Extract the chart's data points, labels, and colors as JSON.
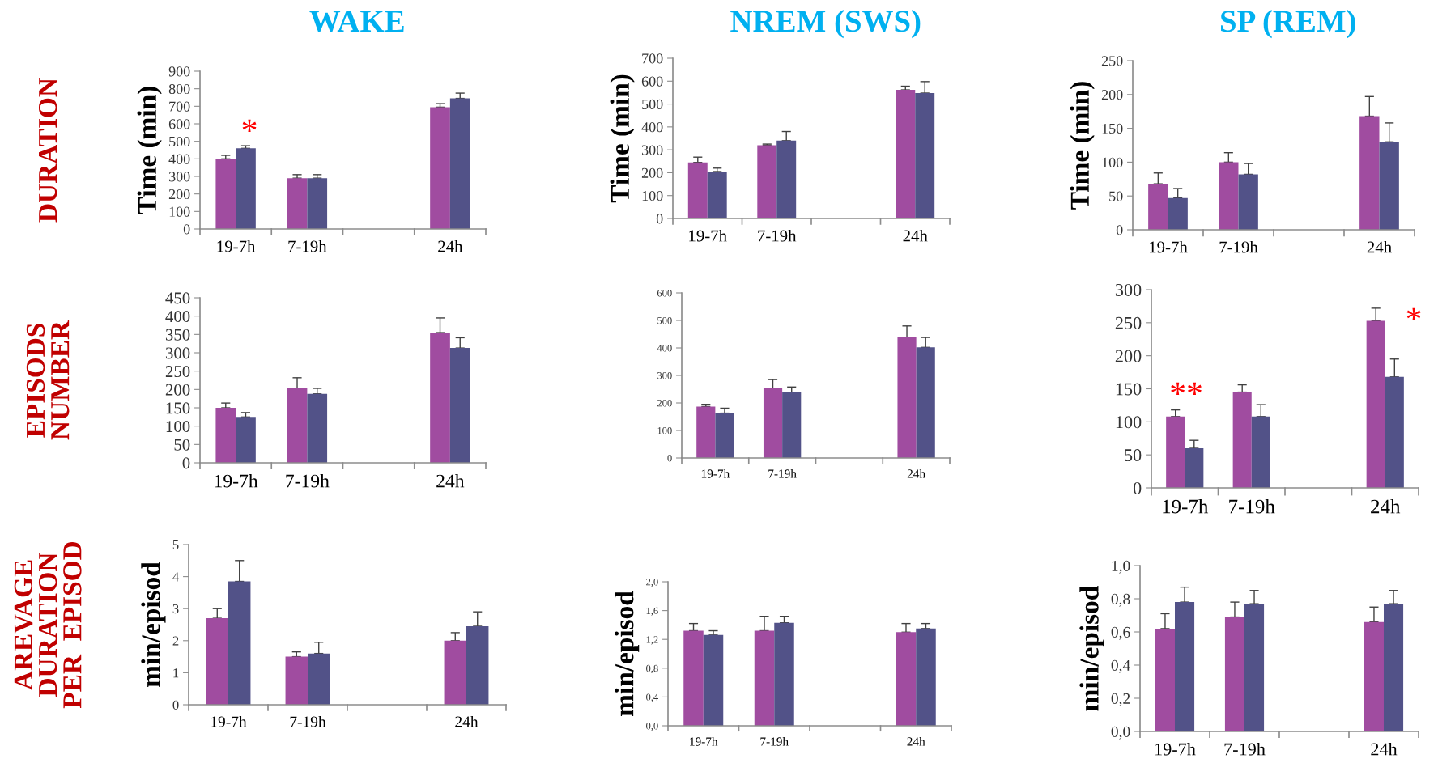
{
  "chart_data": [
    {
      "type": "bar",
      "title": "WAKE",
      "ylabel": "Time (min)",
      "categories": [
        "19-7h",
        "7-19h",
        null,
        "24h"
      ],
      "ylim": [
        0,
        900
      ],
      "yticks": [
        0,
        100,
        200,
        300,
        400,
        500,
        600,
        700,
        800,
        900
      ],
      "grid": false,
      "annotations": [
        "DURATION",
        "*"
      ],
      "series": [
        {
          "color": "#a04ca0",
          "values": [
            400,
            290,
            null,
            695
          ],
          "errors": [
            [
              400,
              420
            ],
            [
              290,
              310
            ],
            null,
            [
              695,
              715
            ]
          ]
        },
        {
          "color": "#525288",
          "values": [
            460,
            290,
            null,
            745
          ],
          "errors": [
            [
              460,
              475
            ],
            [
              290,
              310
            ],
            null,
            [
              745,
              775
            ]
          ]
        }
      ]
    },
    {
      "type": "bar",
      "title": "NREM (SWS)",
      "ylabel": "Time (min)",
      "categories": [
        "19-7h",
        "7-19h",
        null,
        "24h"
      ],
      "ylim": [
        0,
        700
      ],
      "yticks": [
        0,
        100,
        200,
        300,
        400,
        500,
        600,
        700
      ],
      "grid": false,
      "series": [
        {
          "color": "#a04ca0",
          "values": [
            245,
            320,
            null,
            562
          ],
          "errors": [
            [
              245,
              268
            ],
            [
              320,
              325
            ],
            null,
            [
              562,
              578
            ]
          ]
        },
        {
          "color": "#525288",
          "values": [
            205,
            340,
            null,
            548
          ],
          "errors": [
            [
              205,
              220
            ],
            [
              340,
              380
            ],
            null,
            [
              548,
              598
            ]
          ]
        }
      ]
    },
    {
      "type": "bar",
      "title": "SP (REM)",
      "ylabel": "Time (min)",
      "categories": [
        "19-7h",
        "7-19h",
        null,
        "24h"
      ],
      "ylim": [
        0,
        250
      ],
      "yticks": [
        0,
        50,
        100,
        150,
        200,
        250
      ],
      "grid": false,
      "series": [
        {
          "color": "#a04ca0",
          "values": [
            68,
            100,
            null,
            168
          ],
          "errors": [
            [
              68,
              84
            ],
            [
              100,
              114
            ],
            null,
            [
              168,
              197
            ]
          ]
        },
        {
          "color": "#525288",
          "values": [
            47,
            82,
            null,
            130
          ],
          "errors": [
            [
              47,
              61
            ],
            [
              82,
              98
            ],
            null,
            [
              130,
              158
            ]
          ]
        }
      ]
    },
    {
      "type": "bar",
      "categories": [
        "19-7h",
        "7-19h",
        null,
        "24h"
      ],
      "ylim": [
        0,
        450
      ],
      "yticks": [
        0,
        50,
        100,
        150,
        200,
        250,
        300,
        350,
        400,
        450
      ],
      "grid": false,
      "annotations": [
        "EPISODS\nNUMBER"
      ],
      "series": [
        {
          "color": "#a04ca0",
          "values": [
            150,
            203,
            null,
            355
          ],
          "errors": [
            [
              150,
              163
            ],
            [
              203,
              232
            ],
            null,
            [
              355,
              395
            ]
          ]
        },
        {
          "color": "#525288",
          "values": [
            125,
            188,
            null,
            313
          ],
          "errors": [
            [
              125,
              137
            ],
            [
              188,
              203
            ],
            null,
            [
              313,
              341
            ]
          ]
        }
      ]
    },
    {
      "type": "bar",
      "categories": [
        "19-7h",
        "7-19h",
        null,
        "24h"
      ],
      "ylim": [
        0,
        600
      ],
      "yticks": [
        0,
        100,
        200,
        300,
        400,
        500,
        600
      ],
      "grid": false,
      "series": [
        {
          "color": "#a04ca0",
          "values": [
            187,
            253,
            null,
            438
          ],
          "errors": [
            [
              187,
              195
            ],
            [
              253,
              285
            ],
            null,
            [
              438,
              480
            ]
          ]
        },
        {
          "color": "#525288",
          "values": [
            163,
            238,
            null,
            402
          ],
          "errors": [
            [
              163,
              181
            ],
            [
              238,
              258
            ],
            null,
            [
              402,
              438
            ]
          ]
        }
      ]
    },
    {
      "type": "bar",
      "categories": [
        "19-7h",
        "7-19h",
        null,
        "24h"
      ],
      "ylim": [
        0,
        300
      ],
      "yticks": [
        0,
        50,
        100,
        150,
        200,
        250,
        300
      ],
      "grid": false,
      "annotations": [
        "**",
        "*"
      ],
      "series": [
        {
          "color": "#a04ca0",
          "values": [
            108,
            145,
            null,
            253
          ],
          "errors": [
            [
              108,
              118
            ],
            [
              145,
              156
            ],
            null,
            [
              253,
              272
            ]
          ]
        },
        {
          "color": "#525288",
          "values": [
            60,
            108,
            null,
            168
          ],
          "errors": [
            [
              60,
              72
            ],
            [
              108,
              126
            ],
            null,
            [
              168,
              195
            ]
          ]
        }
      ]
    },
    {
      "type": "bar",
      "ylabel": "min/episod",
      "categories": [
        "19-7h",
        "7-19h",
        null,
        "24h"
      ],
      "ylim": [
        0,
        5
      ],
      "yticks": [
        0,
        1,
        2,
        3,
        4,
        5
      ],
      "grid": false,
      "annotations": [
        "AREVAGE\nDURATION\nPER  EPISOD"
      ],
      "series": [
        {
          "color": "#a04ca0",
          "values": [
            2.7,
            1.5,
            null,
            2.0
          ],
          "errors": [
            [
              2.7,
              3.0
            ],
            [
              1.5,
              1.65
            ],
            null,
            [
              2.0,
              2.25
            ]
          ]
        },
        {
          "color": "#525288",
          "values": [
            3.85,
            1.6,
            null,
            2.45
          ],
          "errors": [
            [
              3.85,
              4.5
            ],
            [
              1.6,
              1.95
            ],
            null,
            [
              2.45,
              2.9
            ]
          ]
        }
      ]
    },
    {
      "type": "bar",
      "ylabel": "min/episod",
      "categories": [
        "19-7h",
        "7-19h",
        null,
        "24h"
      ],
      "ylim": [
        0,
        2.0
      ],
      "yticks": [
        {
          "value": 0,
          "label": "0,0"
        },
        {
          "value": 0.4,
          "label": "0,4"
        },
        {
          "value": 0.8,
          "label": "0,8"
        },
        {
          "value": 1.2,
          "label": "1,2"
        },
        {
          "value": 1.6,
          "label": "1,6"
        },
        {
          "value": 2.0,
          "label": "2,0"
        }
      ],
      "grid": false,
      "series": [
        {
          "color": "#a04ca0",
          "values": [
            1.32,
            1.32,
            null,
            1.3
          ],
          "errors": [
            [
              1.32,
              1.42
            ],
            [
              1.32,
              1.52
            ],
            null,
            [
              1.3,
              1.42
            ]
          ]
        },
        {
          "color": "#525288",
          "values": [
            1.26,
            1.43,
            null,
            1.35
          ],
          "errors": [
            [
              1.26,
              1.32
            ],
            [
              1.43,
              1.52
            ],
            null,
            [
              1.35,
              1.42
            ]
          ]
        }
      ]
    },
    {
      "type": "bar",
      "ylabel": "min/episod",
      "categories": [
        "19-7h",
        "7-19h",
        null,
        "24h"
      ],
      "ylim": [
        0,
        1.0
      ],
      "yticks": [
        {
          "value": 0,
          "label": "0,0"
        },
        {
          "value": 0.2,
          "label": "0,2"
        },
        {
          "value": 0.4,
          "label": "0,4"
        },
        {
          "value": 0.6,
          "label": "0,6"
        },
        {
          "value": 0.8,
          "label": "0,8"
        },
        {
          "value": 1.0,
          "label": "1,0"
        }
      ],
      "grid": false,
      "series": [
        {
          "color": "#a04ca0",
          "values": [
            0.62,
            0.69,
            null,
            0.66
          ],
          "errors": [
            [
              0.62,
              0.71
            ],
            [
              0.69,
              0.78
            ],
            null,
            [
              0.66,
              0.75
            ]
          ]
        },
        {
          "color": "#525288",
          "values": [
            0.78,
            0.77,
            null,
            0.77
          ],
          "errors": [
            [
              0.78,
              0.87
            ],
            [
              0.77,
              0.85
            ],
            null,
            [
              0.77,
              0.85
            ]
          ]
        }
      ]
    }
  ]
}
